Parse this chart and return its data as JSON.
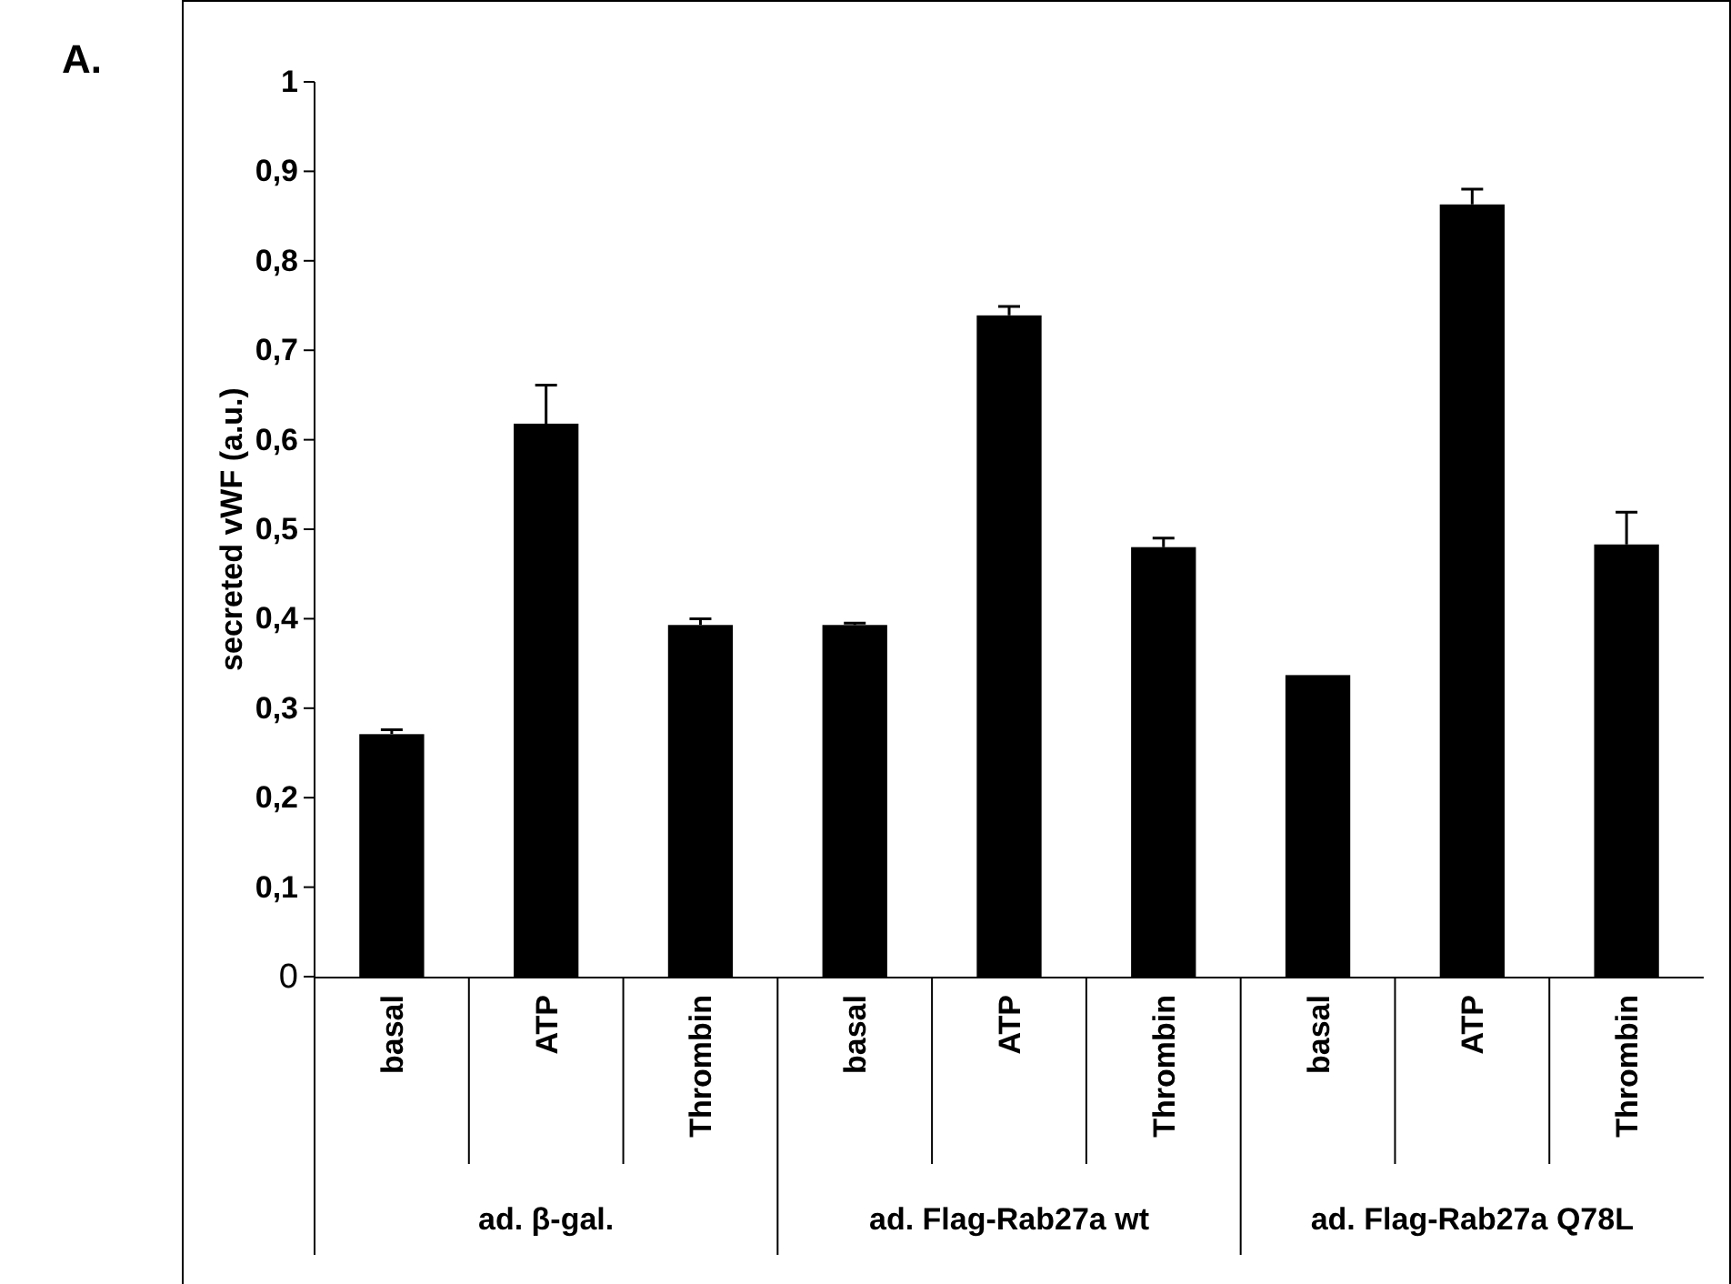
{
  "chart_data": {
    "type": "bar",
    "ylabel": "secreted vWF (a.u.)",
    "categories": [
      "basal",
      "ATP",
      "Thrombin",
      "basal",
      "ATP",
      "Thrombin",
      "basal",
      "ATP",
      "Thrombin"
    ],
    "values": [
      0.271,
      0.618,
      0.393,
      0.393,
      0.739,
      0.48,
      0.337,
      0.863,
      0.483
    ],
    "errors": [
      0.005,
      0.043,
      0.007,
      0.002,
      0.01,
      0.01,
      null,
      0.017,
      0.036
    ],
    "color": "#000000",
    "ylim": [
      0,
      1
    ],
    "yticks": [
      0,
      {
        "value": 0.1,
        "label": "0,1"
      },
      {
        "value": 0.2,
        "label": "0,2"
      },
      {
        "value": 0.3,
        "label": "0,3"
      },
      {
        "value": 0.4,
        "label": "0,4"
      },
      {
        "value": 0.5,
        "label": "0,5"
      },
      {
        "value": 0.6,
        "label": "0,6"
      },
      {
        "value": 0.7,
        "label": "0,7"
      },
      {
        "value": 0.8,
        "label": "0,8"
      },
      {
        "value": 0.9,
        "label": "0,9"
      },
      1
    ],
    "annotations": [
      "A.",
      "ad. β-gal.",
      "ad. Flag-Rab27a wt",
      "ad. Flag-Rab27a Q78L"
    ]
  }
}
